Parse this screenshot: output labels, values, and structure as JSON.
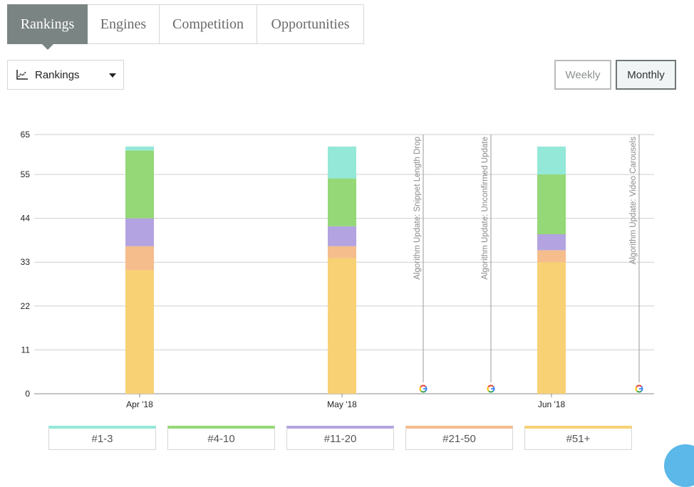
{
  "tabs": [
    {
      "label": "Rankings",
      "active": true
    },
    {
      "label": "Engines",
      "active": false
    },
    {
      "label": "Competition",
      "active": false
    },
    {
      "label": "Opportunities",
      "active": false
    }
  ],
  "dropdown": {
    "label": "Rankings",
    "icon": "line-chart-icon"
  },
  "period": {
    "weekly": "Weekly",
    "monthly": "Monthly",
    "selected": "Monthly"
  },
  "chart_data": {
    "type": "bar",
    "stacked": true,
    "ylim": [
      0,
      65
    ],
    "yticks": [
      "0",
      "11",
      "22",
      "33",
      "44",
      "55",
      "65"
    ],
    "grid": true,
    "categories": [
      "Apr '18",
      "May '18",
      "Jun '18"
    ],
    "series": [
      {
        "name": "#51+",
        "color": "#f8d174",
        "values": [
          31,
          34,
          33
        ]
      },
      {
        "name": "#21-50",
        "color": "#f5bc8c",
        "values": [
          6,
          3,
          3
        ]
      },
      {
        "name": "#11-20",
        "color": "#b3a3e0",
        "values": [
          7,
          5,
          4
        ]
      },
      {
        "name": "#4-10",
        "color": "#94d877",
        "values": [
          17,
          12,
          15
        ]
      },
      {
        "name": "#1-3",
        "color": "#93e8d8",
        "values": [
          1,
          8,
          7
        ]
      }
    ],
    "annotations": [
      {
        "label": "Algorithm Update: Snippet Length Drop",
        "icon": "google-icon"
      },
      {
        "label": "Algorithm Update: Unconfirmed Update",
        "icon": "google-icon"
      },
      {
        "label": "Algorithm Update: Video Carousels",
        "icon": "google-icon"
      }
    ]
  },
  "legend": [
    {
      "label": "#1-3",
      "color": "#93e8d8"
    },
    {
      "label": "#4-10",
      "color": "#94d877"
    },
    {
      "label": "#11-20",
      "color": "#b3a3e0"
    },
    {
      "label": "#21-50",
      "color": "#f5bc8c"
    },
    {
      "label": "#51+",
      "color": "#f8d174"
    }
  ]
}
